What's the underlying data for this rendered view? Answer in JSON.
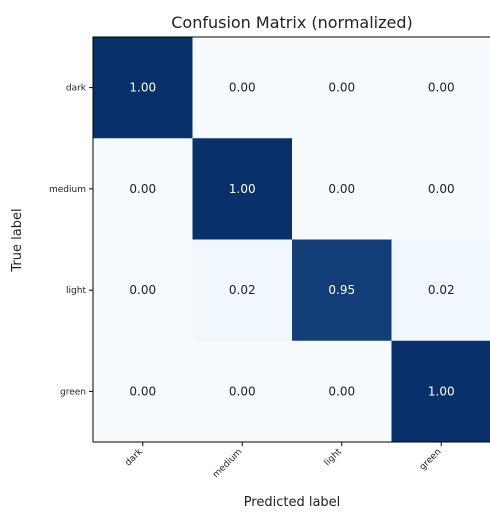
{
  "chart_data": {
    "type": "heatmap",
    "title": "Confusion Matrix (normalized)",
    "xlabel": "Predicted label",
    "ylabel": "True label",
    "x_categories": [
      "dark",
      "medium",
      "light",
      "green"
    ],
    "y_categories": [
      "dark",
      "medium",
      "light",
      "green"
    ],
    "values": [
      [
        1.0,
        0.0,
        0.0,
        0.0
      ],
      [
        0.0,
        1.0,
        0.0,
        0.0
      ],
      [
        0.0,
        0.02,
        0.95,
        0.02
      ],
      [
        0.0,
        0.0,
        0.0,
        1.0
      ]
    ],
    "value_format": "2 decimals",
    "colormap": "Blues",
    "color_low": "#f7fbff",
    "color_high": "#08306b",
    "grid": false,
    "legend": "none"
  }
}
